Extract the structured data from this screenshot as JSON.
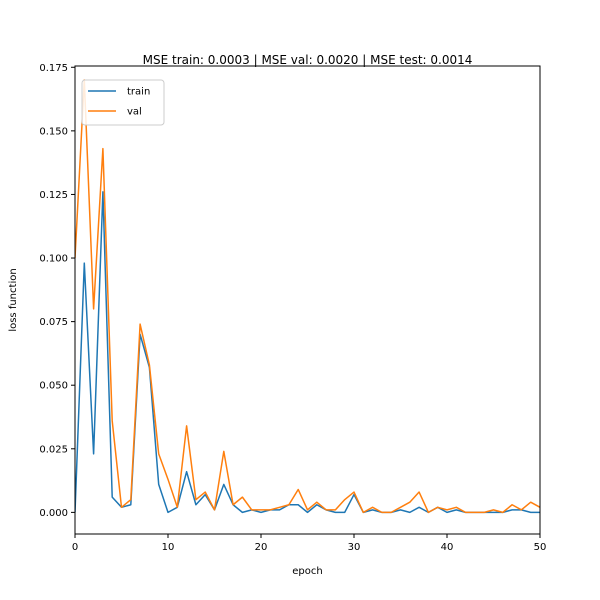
{
  "chart_data": {
    "type": "line",
    "title": "MSE train: 0.0003 | MSE val: 0.0020 | MSE test: 0.0014",
    "xlabel": "epoch",
    "ylabel": "loss function",
    "xlim": [
      0,
      50
    ],
    "ylim": [
      -0.0085,
      0.1755
    ],
    "xticks": [
      0,
      10,
      20,
      30,
      40,
      50
    ],
    "xtick_labels": [
      "0",
      "10",
      "20",
      "30",
      "40",
      "50"
    ],
    "yticks": [
      0.0,
      0.025,
      0.05,
      0.075,
      0.1,
      0.125,
      0.15,
      0.175
    ],
    "ytick_labels": [
      "0.000",
      "0.025",
      "0.050",
      "0.075",
      "0.100",
      "0.125",
      "0.150",
      "0.175"
    ],
    "grid": false,
    "legend_position": "top-left",
    "series": [
      {
        "name": "train",
        "color": "#1f77b4",
        "x": [
          0,
          1,
          2,
          3,
          4,
          5,
          6,
          7,
          8,
          9,
          10,
          11,
          12,
          13,
          14,
          15,
          16,
          17,
          18,
          19,
          20,
          21,
          22,
          23,
          24,
          25,
          26,
          27,
          28,
          29,
          30,
          31,
          32,
          33,
          34,
          35,
          36,
          37,
          38,
          39,
          40,
          41,
          42,
          43,
          44,
          45,
          46,
          47,
          48,
          49,
          50
        ],
        "values": [
          0.0,
          0.098,
          0.023,
          0.126,
          0.006,
          0.002,
          0.003,
          0.07,
          0.057,
          0.011,
          0.0,
          0.002,
          0.016,
          0.003,
          0.007,
          0.001,
          0.011,
          0.003,
          0.0,
          0.001,
          0.0,
          0.001,
          0.001,
          0.003,
          0.003,
          0.0,
          0.003,
          0.001,
          0.0,
          0.0,
          0.007,
          0.0,
          0.001,
          0.0,
          0.0,
          0.001,
          0.0,
          0.002,
          0.0,
          0.002,
          0.0,
          0.001,
          0.0,
          0.0,
          0.0,
          0.0,
          0.0,
          0.001,
          0.001,
          0.0,
          0.0
        ]
      },
      {
        "name": "val",
        "color": "#ff7f0e",
        "x": [
          0,
          1,
          2,
          3,
          4,
          5,
          6,
          7,
          8,
          9,
          10,
          11,
          12,
          13,
          14,
          15,
          16,
          17,
          18,
          19,
          20,
          21,
          22,
          23,
          24,
          25,
          26,
          27,
          28,
          29,
          30,
          31,
          32,
          33,
          34,
          35,
          36,
          37,
          38,
          39,
          40,
          41,
          42,
          43,
          44,
          45,
          46,
          47,
          48,
          49,
          50
        ],
        "values": [
          0.1,
          0.17,
          0.08,
          0.143,
          0.036,
          0.002,
          0.005,
          0.074,
          0.058,
          0.023,
          0.013,
          0.002,
          0.034,
          0.005,
          0.008,
          0.001,
          0.024,
          0.003,
          0.006,
          0.001,
          0.001,
          0.001,
          0.002,
          0.003,
          0.009,
          0.001,
          0.004,
          0.001,
          0.001,
          0.005,
          0.008,
          0.0,
          0.002,
          0.0,
          0.0,
          0.002,
          0.004,
          0.008,
          0.0,
          0.002,
          0.001,
          0.002,
          0.0,
          0.0,
          0.0,
          0.001,
          0.0,
          0.003,
          0.001,
          0.004,
          0.002
        ]
      }
    ]
  }
}
